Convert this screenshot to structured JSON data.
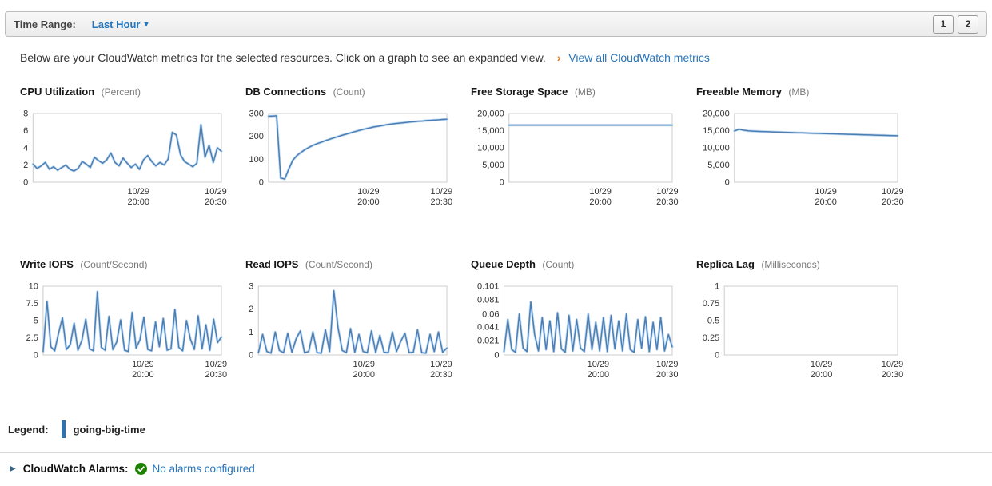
{
  "colors": {
    "accent": "#2775bb",
    "chart_line": "#4a7eb5",
    "chart_line_halo": "#c7ddf0",
    "legend_bar": "#3172ab",
    "ok_green": "#1d8102"
  },
  "icons": {
    "dropdown_caret": "▾",
    "expand_arrow": "▶",
    "description_arrow": "›"
  },
  "toolbar": {
    "time_range_label": "Time Range:",
    "time_range_value": "Last Hour",
    "pages": [
      "1",
      "2"
    ]
  },
  "description": {
    "text": "Below are your CloudWatch metrics for the selected resources. Click on a graph to see an expanded view.",
    "link_label": "View all CloudWatch metrics"
  },
  "legend": {
    "label": "Legend:",
    "series_name": "going-big-time"
  },
  "alarms": {
    "label": "CloudWatch Alarms:",
    "status_link": "No alarms configured"
  },
  "chart_data": [
    {
      "type": "line",
      "title": "CPU Utilization",
      "unit_label": "(Percent)",
      "ylim": [
        0,
        8
      ],
      "y_ticks": [
        {
          "label": "0",
          "value": 0
        },
        {
          "label": "2",
          "value": 2
        },
        {
          "label": "4",
          "value": 4
        },
        {
          "label": "6",
          "value": 6
        },
        {
          "label": "8",
          "value": 8
        }
      ],
      "x_ticks": [
        {
          "lines": [
            "10/29",
            "20:00"
          ],
          "pos": 0.56
        },
        {
          "lines": [
            "10/29",
            "20:30"
          ],
          "pos": 0.97
        }
      ],
      "values": [
        2.1,
        1.6,
        1.9,
        2.3,
        1.5,
        1.8,
        1.4,
        1.7,
        2.0,
        1.5,
        1.3,
        1.6,
        2.4,
        2.1,
        1.7,
        2.9,
        2.5,
        2.2,
        2.6,
        3.4,
        2.3,
        1.9,
        2.8,
        2.2,
        1.7,
        2.1,
        1.5,
        2.6,
        3.1,
        2.4,
        1.9,
        2.3,
        2.0,
        2.7,
        5.8,
        5.5,
        3.2,
        2.4,
        2.1,
        1.8,
        2.2,
        6.7,
        2.9,
        4.3,
        2.3,
        4.0,
        3.6
      ]
    },
    {
      "type": "line",
      "title": "DB Connections",
      "unit_label": "(Count)",
      "ylim": [
        0,
        300
      ],
      "y_ticks": [
        {
          "label": "0",
          "value": 0
        },
        {
          "label": "100",
          "value": 100
        },
        {
          "label": "200",
          "value": 200
        },
        {
          "label": "300",
          "value": 300
        }
      ],
      "x_ticks": [
        {
          "lines": [
            "10/29",
            "20:00"
          ],
          "pos": 0.56
        },
        {
          "lines": [
            "10/29",
            "20:30"
          ],
          "pos": 0.97
        }
      ],
      "values": [
        288,
        289,
        290,
        18,
        14,
        58,
        96,
        116,
        130,
        142,
        152,
        161,
        168,
        174,
        181,
        187,
        193,
        198,
        204,
        209,
        214,
        219,
        224,
        229,
        233,
        237,
        241,
        244,
        247,
        250,
        253,
        255,
        257,
        259,
        261,
        263,
        264,
        266,
        267,
        269,
        270,
        271,
        272,
        274,
        275
      ]
    },
    {
      "type": "line",
      "title": "Free Storage Space",
      "unit_label": "(MB)",
      "ylim": [
        0,
        20000
      ],
      "y_ticks": [
        {
          "label": "0",
          "value": 0
        },
        {
          "label": "5,000",
          "value": 5000
        },
        {
          "label": "10,000",
          "value": 10000
        },
        {
          "label": "15,000",
          "value": 15000
        },
        {
          "label": "20,000",
          "value": 20000
        }
      ],
      "x_ticks": [
        {
          "lines": [
            "10/29",
            "20:00"
          ],
          "pos": 0.56
        },
        {
          "lines": [
            "10/29",
            "20:30"
          ],
          "pos": 0.97
        }
      ],
      "values": [
        16600,
        16600,
        16600,
        16600,
        16600,
        16600,
        16600,
        16600,
        16600,
        16600,
        16600,
        16600,
        16600,
        16600,
        16600,
        16600,
        16600,
        16600,
        16600,
        16600,
        16600,
        16600,
        16600,
        16600
      ]
    },
    {
      "type": "line",
      "title": "Freeable Memory",
      "unit_label": "(MB)",
      "ylim": [
        0,
        20000
      ],
      "y_ticks": [
        {
          "label": "0",
          "value": 0
        },
        {
          "label": "5,000",
          "value": 5000
        },
        {
          "label": "10,000",
          "value": 10000
        },
        {
          "label": "15,000",
          "value": 15000
        },
        {
          "label": "20,000",
          "value": 20000
        }
      ],
      "x_ticks": [
        {
          "lines": [
            "10/29",
            "20:00"
          ],
          "pos": 0.56
        },
        {
          "lines": [
            "10/29",
            "20:30"
          ],
          "pos": 0.97
        }
      ],
      "values": [
        14900,
        15400,
        15150,
        14950,
        14850,
        14800,
        14750,
        14700,
        14650,
        14600,
        14550,
        14500,
        14460,
        14420,
        14380,
        14340,
        14300,
        14260,
        14220,
        14180,
        14140,
        14100,
        14060,
        14020,
        13980,
        13940,
        13900,
        13860,
        13820,
        13780,
        13740,
        13700,
        13660,
        13620,
        13580,
        13540,
        13500
      ]
    },
    {
      "type": "line",
      "title": "Write IOPS",
      "unit_label": "(Count/Second)",
      "ylim": [
        0,
        10
      ],
      "y_ticks": [
        {
          "label": "0",
          "value": 0
        },
        {
          "label": "2.5",
          "value": 2.5
        },
        {
          "label": "5",
          "value": 5
        },
        {
          "label": "7.5",
          "value": 7.5
        },
        {
          "label": "10",
          "value": 10
        }
      ],
      "x_ticks": [
        {
          "lines": [
            "10/29",
            "20:00"
          ],
          "pos": 0.56
        },
        {
          "lines": [
            "10/29",
            "20:30"
          ],
          "pos": 0.97
        }
      ],
      "values": [
        0.5,
        7.8,
        1.2,
        0.6,
        3.2,
        5.4,
        0.8,
        1.5,
        4.6,
        0.7,
        2.1,
        5.2,
        0.9,
        0.6,
        9.2,
        1.1,
        0.7,
        5.6,
        0.8,
        1.9,
        5.1,
        0.7,
        0.5,
        6.2,
        1.0,
        2.2,
        5.5,
        0.8,
        0.6,
        4.8,
        1.2,
        5.3,
        0.7,
        0.9,
        6.6,
        1.1,
        0.6,
        5.0,
        2.3,
        0.8,
        5.7,
        0.9,
        4.4,
        0.7,
        5.2,
        1.8,
        2.6
      ]
    },
    {
      "type": "line",
      "title": "Read IOPS",
      "unit_label": "(Count/Second)",
      "ylim": [
        0,
        3
      ],
      "y_ticks": [
        {
          "label": "0",
          "value": 0
        },
        {
          "label": "1",
          "value": 1
        },
        {
          "label": "2",
          "value": 2
        },
        {
          "label": "3",
          "value": 3
        }
      ],
      "x_ticks": [
        {
          "lines": [
            "10/29",
            "20:00"
          ],
          "pos": 0.56
        },
        {
          "lines": [
            "10/29",
            "20:30"
          ],
          "pos": 0.97
        }
      ],
      "values": [
        0.1,
        0.9,
        0.15,
        0.08,
        1.0,
        0.2,
        0.1,
        0.95,
        0.12,
        0.7,
        1.05,
        0.1,
        0.15,
        1.0,
        0.1,
        0.08,
        1.1,
        0.15,
        2.8,
        1.2,
        0.2,
        0.1,
        1.15,
        0.12,
        0.9,
        0.15,
        0.1,
        1.05,
        0.1,
        0.85,
        0.12,
        0.1,
        1.0,
        0.15,
        0.6,
        0.95,
        0.1,
        0.12,
        1.1,
        0.1,
        0.08,
        0.9,
        0.15,
        1.0,
        0.12,
        0.3
      ]
    },
    {
      "type": "line",
      "title": "Queue Depth",
      "unit_label": "(Count)",
      "ylim": [
        0,
        0.101
      ],
      "y_ticks": [
        {
          "label": "0",
          "value": 0
        },
        {
          "label": "0.021",
          "value": 0.021
        },
        {
          "label": "0.041",
          "value": 0.041
        },
        {
          "label": "0.06",
          "value": 0.06
        },
        {
          "label": "0.081",
          "value": 0.081
        },
        {
          "label": "0.101",
          "value": 0.101
        }
      ],
      "x_ticks": [
        {
          "lines": [
            "10/29",
            "20:00"
          ],
          "pos": 0.56
        },
        {
          "lines": [
            "10/29",
            "20:30"
          ],
          "pos": 0.97
        }
      ],
      "values": [
        0.005,
        0.052,
        0.008,
        0.004,
        0.06,
        0.01,
        0.005,
        0.078,
        0.03,
        0.006,
        0.055,
        0.008,
        0.05,
        0.005,
        0.062,
        0.009,
        0.004,
        0.058,
        0.006,
        0.052,
        0.01,
        0.005,
        0.06,
        0.008,
        0.048,
        0.006,
        0.055,
        0.005,
        0.058,
        0.009,
        0.05,
        0.006,
        0.06,
        0.008,
        0.004,
        0.052,
        0.01,
        0.056,
        0.005,
        0.048,
        0.008,
        0.055,
        0.006,
        0.03,
        0.012
      ]
    },
    {
      "type": "line",
      "title": "Replica Lag",
      "unit_label": "(Milliseconds)",
      "ylim": [
        0,
        1
      ],
      "y_ticks": [
        {
          "label": "0",
          "value": 0
        },
        {
          "label": "0.25",
          "value": 0.25
        },
        {
          "label": "0.5",
          "value": 0.5
        },
        {
          "label": "0.75",
          "value": 0.75
        },
        {
          "label": "1",
          "value": 1
        }
      ],
      "x_ticks": [
        {
          "lines": [
            "10/29",
            "20:00"
          ],
          "pos": 0.56
        },
        {
          "lines": [
            "10/29",
            "20:30"
          ],
          "pos": 0.97
        }
      ],
      "values": []
    }
  ]
}
